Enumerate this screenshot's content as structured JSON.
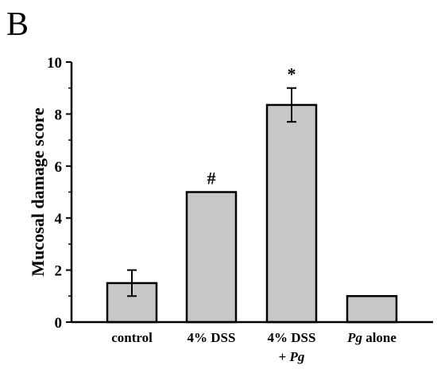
{
  "panel_label": "B",
  "chart_data": {
    "type": "bar",
    "title": "",
    "xlabel": "",
    "ylabel": "Mucosal damage score",
    "ylim": [
      0,
      10
    ],
    "yticks": [
      0,
      2,
      4,
      6,
      8,
      10
    ],
    "grid": false,
    "bar_color": "#c8c8c8",
    "edge_color": "#000000",
    "categories": [
      {
        "line1": "control",
        "line2": ""
      },
      {
        "line1": "4% DSS",
        "line2": ""
      },
      {
        "line1": "4% DSS",
        "line2": "+ Pg"
      },
      {
        "line1": "Pg alone",
        "line2": ""
      }
    ],
    "values": [
      1.5,
      5.0,
      8.35,
      1.0
    ],
    "errors": [
      0.5,
      0,
      0.65,
      0
    ],
    "significance": [
      "",
      "#",
      "*",
      ""
    ]
  }
}
